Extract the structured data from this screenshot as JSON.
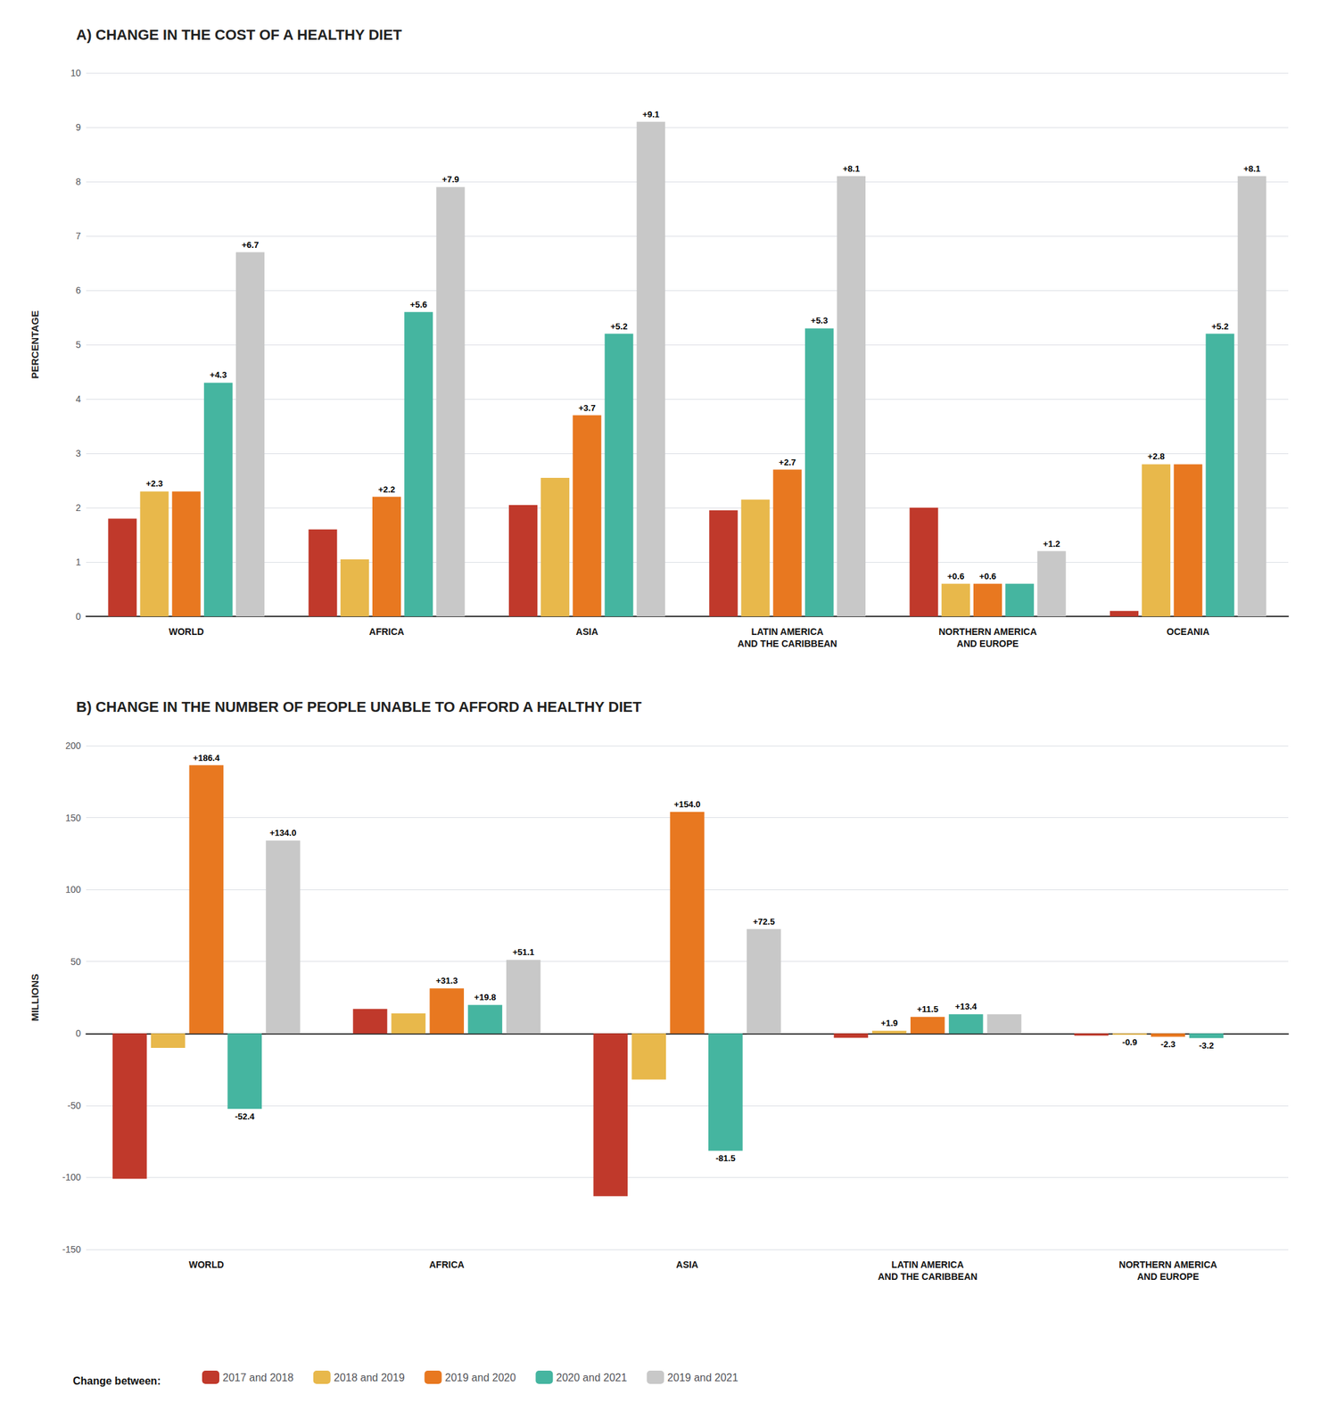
{
  "chart_data": [
    {
      "type": "bar",
      "title": "A) CHANGE IN THE COST OF A HEALTHY DIET",
      "ylabel": "PERCENTAGE",
      "categories": [
        "WORLD",
        "AFRICA",
        "ASIA",
        "LATIN AMERICA\nAND THE CARIBBEAN",
        "NORTHERN AMERICA\nAND EUROPE",
        "OCEANIA"
      ],
      "series": [
        {
          "name": "2017 and 2018",
          "color": "#C0392B",
          "values": [
            1.8,
            1.6,
            2.05,
            1.95,
            2.0,
            0.1
          ],
          "value_labels": [
            null,
            null,
            null,
            null,
            null,
            null
          ]
        },
        {
          "name": "2018 and 2019",
          "color": "#E8B84B",
          "values": [
            2.3,
            1.05,
            2.55,
            2.15,
            0.6,
            2.8
          ],
          "value_labels": [
            "+2.3",
            null,
            null,
            null,
            "+0.6",
            "+2.8"
          ]
        },
        {
          "name": "2019 and 2020",
          "color": "#E87820",
          "values": [
            2.3,
            2.2,
            3.7,
            2.7,
            0.6,
            2.8
          ],
          "value_labels": [
            null,
            "+2.2",
            "+3.7",
            "+2.7",
            "+0.6",
            null
          ]
        },
        {
          "name": "2020 and 2021",
          "color": "#45B5A0",
          "values": [
            4.3,
            5.6,
            5.2,
            5.3,
            0.6,
            5.2
          ],
          "value_labels": [
            "+4.3",
            "+5.6",
            "+5.2",
            "+5.3",
            null,
            "+5.2"
          ]
        },
        {
          "name": "2019 and 2021",
          "color": "#C8C8C8",
          "values": [
            6.7,
            7.9,
            9.1,
            8.1,
            1.2,
            8.1
          ],
          "value_labels": [
            "+6.7",
            "+7.9",
            "+9.1",
            "+8.1",
            "+1.2",
            "+8.1"
          ]
        }
      ],
      "ylim": [
        0,
        10
      ],
      "yticks": [
        0,
        1,
        2,
        3,
        4,
        5,
        6,
        7,
        8,
        9,
        10
      ],
      "grid": true
    },
    {
      "type": "bar",
      "title": "B) CHANGE IN THE NUMBER OF PEOPLE UNABLE TO AFFORD A HEALTHY DIET",
      "ylabel": "MILLIONS",
      "categories": [
        "WORLD",
        "AFRICA",
        "ASIA",
        "LATIN AMERICA\nAND THE CARIBBEAN",
        "NORTHERN AMERICA\nAND EUROPE"
      ],
      "series": [
        {
          "name": "2017 and 2018",
          "color": "#C0392B",
          "values": [
            -101.0,
            17.0,
            -113.0,
            -3.0,
            -1.5
          ],
          "value_labels": [
            null,
            null,
            null,
            null,
            null
          ]
        },
        {
          "name": "2018 and 2019",
          "color": "#E8B84B",
          "values": [
            -10.0,
            14.0,
            -32.0,
            1.9,
            -0.9
          ],
          "value_labels": [
            null,
            null,
            null,
            "+1.9",
            "-0.9"
          ]
        },
        {
          "name": "2019 and 2020",
          "color": "#E87820",
          "values": [
            186.4,
            31.3,
            154.0,
            11.5,
            -2.3
          ],
          "value_labels": [
            "+186.4",
            "+31.3",
            "+154.0",
            "+11.5",
            "-2.3"
          ]
        },
        {
          "name": "2020 and 2021",
          "color": "#45B5A0",
          "values": [
            -52.4,
            19.8,
            -81.5,
            13.4,
            -3.2
          ],
          "value_labels": [
            "-52.4",
            "+19.8",
            "-81.5",
            "+13.4",
            "-3.2"
          ]
        },
        {
          "name": "2019 and 2021",
          "color": "#C8C8C8",
          "values": [
            134.0,
            51.1,
            72.5,
            13.4,
            0.0
          ],
          "value_labels": [
            "+134.0",
            "+51.1",
            "+72.5",
            null,
            null
          ]
        }
      ],
      "ylim": [
        -150,
        200
      ],
      "yticks": [
        -150,
        -100,
        -50,
        0,
        50,
        100,
        150,
        200
      ],
      "grid": true,
      "legend": "bottom",
      "annotation": "Change between:"
    }
  ]
}
